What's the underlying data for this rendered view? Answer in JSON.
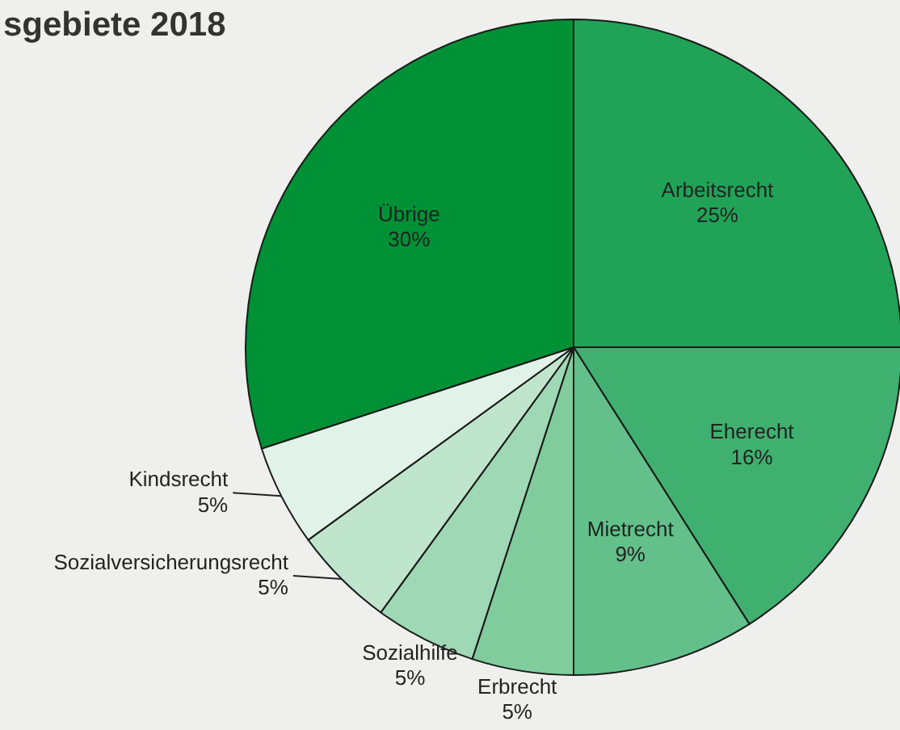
{
  "chart_data": {
    "type": "pie",
    "title": "sgebiete 2018",
    "categories": [
      "Arbeitsrecht",
      "Eherecht",
      "Mietrecht",
      "Erbrecht",
      "Sozialhilfe",
      "Sozialversicherungsrecht",
      "Kindsrecht",
      "Übrige"
    ],
    "values": [
      25,
      16,
      9,
      5,
      5,
      5,
      5,
      30
    ],
    "value_labels": [
      "25%",
      "16%",
      "9%",
      "5%",
      "5%",
      "5%",
      "5%",
      "30%"
    ],
    "colors": [
      "#21a357",
      "#3fb06f",
      "#63c08a",
      "#80cc9d",
      "#9fd8b4",
      "#bfe5cc",
      "#e1f3e8",
      "#009036"
    ]
  }
}
